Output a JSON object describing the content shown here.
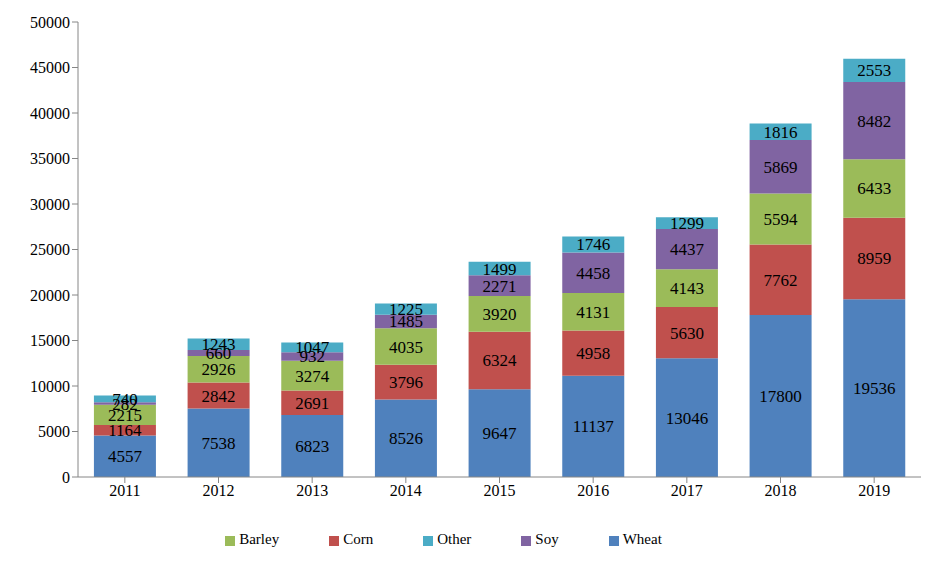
{
  "chart_data": {
    "type": "bar",
    "stacked": true,
    "data_labels": true,
    "grid": false,
    "legend": "bottom",
    "categories": [
      "2011",
      "2012",
      "2013",
      "2014",
      "2015",
      "2016",
      "2017",
      "2018",
      "2019"
    ],
    "ylim": [
      0,
      50000
    ],
    "yticks": [
      0,
      5000,
      10000,
      15000,
      20000,
      25000,
      30000,
      35000,
      40000,
      45000,
      50000
    ],
    "series": [
      {
        "name": "Wheat",
        "color": "#4f81bd",
        "values": [
          4557,
          7538,
          6823,
          8526,
          9647,
          11137,
          13046,
          17800,
          19536
        ]
      },
      {
        "name": "Corn",
        "color": "#c0504d",
        "values": [
          1164,
          2842,
          2691,
          3796,
          6324,
          4958,
          5630,
          7762,
          8959
        ]
      },
      {
        "name": "Barley",
        "color": "#9bbb59",
        "values": [
          2215,
          2926,
          3274,
          4035,
          3920,
          4131,
          4143,
          5594,
          6433
        ]
      },
      {
        "name": "Soy",
        "color": "#8064a2",
        "values": [
          282,
          660,
          932,
          1485,
          2271,
          4458,
          4437,
          5869,
          8482
        ]
      },
      {
        "name": "Other",
        "color": "#4bacc6",
        "values": [
          740,
          1243,
          1047,
          1225,
          1499,
          1746,
          1299,
          1816,
          2553
        ]
      }
    ]
  }
}
